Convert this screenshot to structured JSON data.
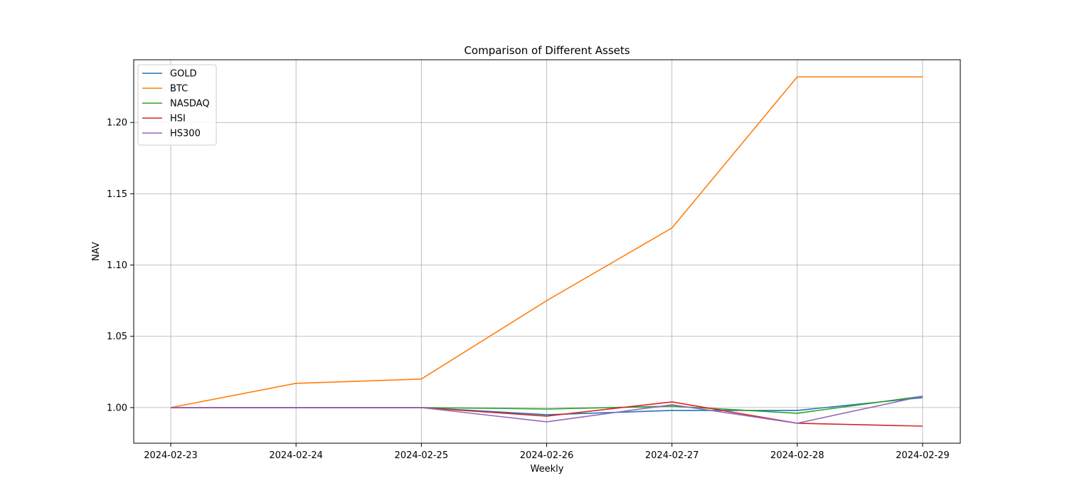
{
  "chart_data": {
    "type": "line",
    "title": "Comparison of Different Assets",
    "xlabel": "Weekly",
    "ylabel": "NAV",
    "x": [
      "2024-02-23",
      "2024-02-24",
      "2024-02-25",
      "2024-02-26",
      "2024-02-27",
      "2024-02-28",
      "2024-02-29"
    ],
    "ylim": [
      0.975,
      1.244
    ],
    "yticks": [
      1.0,
      1.05,
      1.1,
      1.15,
      1.2
    ],
    "ytick_labels": [
      "1.00",
      "1.05",
      "1.10",
      "1.15",
      "1.20"
    ],
    "grid": true,
    "legend_position": "top-left",
    "series": [
      {
        "name": "GOLD",
        "color": "#1f77b4",
        "values": [
          1.0,
          1.0,
          1.0,
          0.995,
          0.998,
          0.998,
          1.007
        ]
      },
      {
        "name": "BTC",
        "color": "#ff7f0e",
        "values": [
          1.0,
          1.017,
          1.02,
          1.075,
          1.126,
          1.232,
          1.232
        ]
      },
      {
        "name": "NASDAQ",
        "color": "#2ca02c",
        "values": [
          1.0,
          1.0,
          1.0,
          0.999,
          1.001,
          0.996,
          1.008
        ]
      },
      {
        "name": "HSI",
        "color": "#d62728",
        "values": [
          1.0,
          1.0,
          1.0,
          0.994,
          1.004,
          0.989,
          0.987
        ]
      },
      {
        "name": "HS300",
        "color": "#9467bd",
        "values": [
          1.0,
          1.0,
          1.0,
          0.99,
          1.002,
          0.989,
          1.008
        ]
      }
    ]
  }
}
